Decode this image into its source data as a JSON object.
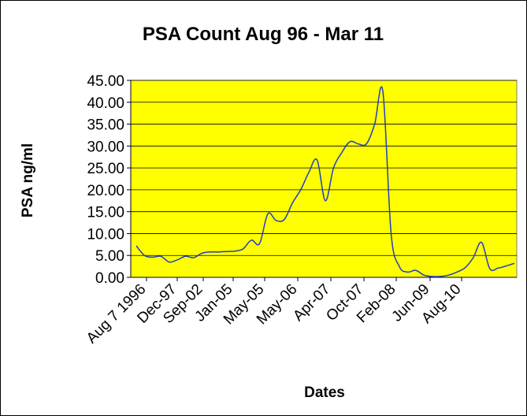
{
  "chart_data": {
    "type": "line",
    "title": "PSA Count Aug 96 - Mar 11",
    "xlabel": "Dates",
    "ylabel": "PSA ng/ml",
    "ylim": [
      0,
      45
    ],
    "yticks": [
      "0.00",
      "5.00",
      "10.00",
      "15.00",
      "20.00",
      "25.00",
      "30.00",
      "35.00",
      "40.00",
      "45.00"
    ],
    "xtick_labels": [
      "Aug 7 1996",
      "Dec-97",
      "Sep-02",
      "Jan-05",
      "May-05",
      "May-06",
      "Apr-07",
      "Oct-07",
      "Feb-08",
      "Jun-09",
      "Aug-10"
    ],
    "grid": "horizontal",
    "legend": "none",
    "colors": {
      "plot_background": "#ffff00",
      "line": "#1f3fbf",
      "grid": "#000000"
    },
    "series": [
      {
        "values": [
          7.2,
          5.0,
          4.6,
          4.8,
          3.5,
          4.0,
          4.8,
          4.5,
          5.5,
          5.8,
          5.8,
          5.9,
          6.0,
          6.5,
          8.5,
          7.7,
          14.5,
          13.0,
          13.2,
          17.0,
          20.0,
          24.0,
          26.8,
          17.5,
          25.0,
          28.5,
          31.0,
          30.5,
          30.5,
          35.0,
          42.5,
          10.0,
          2.5,
          1.2,
          1.6,
          0.5,
          0.2,
          0.2,
          0.5,
          1.2,
          2.2,
          4.5,
          8.0,
          2.0,
          2.1,
          2.6,
          3.2
        ]
      }
    ]
  }
}
